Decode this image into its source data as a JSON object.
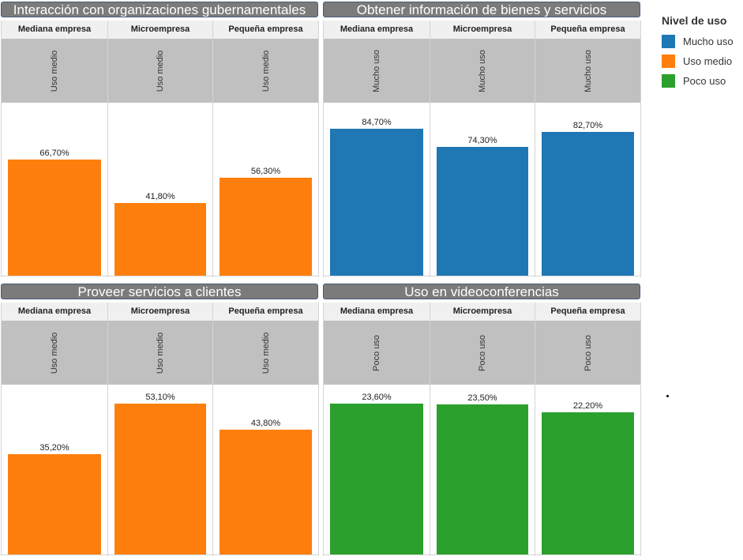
{
  "legend": {
    "title": "Nivel de uso",
    "items": [
      {
        "label": "Mucho uso",
        "color": "#1f77b4"
      },
      {
        "label": "Uso medio",
        "color": "#ff7f0e"
      },
      {
        "label": "Poco uso",
        "color": "#2ca02c"
      }
    ]
  },
  "chart_data": [
    {
      "type": "bar",
      "title": "Interacción con organizaciones gubernamentales",
      "categories": [
        "Mediana empresa",
        "Microempresa",
        "Pequeña empresa"
      ],
      "usage_level": [
        "Uso medio",
        "Uso medio",
        "Uso medio"
      ],
      "values": [
        66.7,
        41.8,
        56.3
      ],
      "labels": [
        "66,70%",
        "41,80%",
        "56,30%"
      ],
      "color": "#ff7f0e",
      "ylim": [
        0,
        100
      ]
    },
    {
      "type": "bar",
      "title": "Obtener información de bienes y servicios",
      "categories": [
        "Mediana empresa",
        "Microempresa",
        "Pequeña empresa"
      ],
      "usage_level": [
        "Mucho uso",
        "Mucho uso",
        "Mucho uso"
      ],
      "values": [
        84.7,
        74.3,
        82.7
      ],
      "labels": [
        "84,70%",
        "74,30%",
        "82,70%"
      ],
      "color": "#1f77b4",
      "ylim": [
        0,
        100
      ]
    },
    {
      "type": "bar",
      "title": "Proveer servicios a clientes",
      "categories": [
        "Mediana empresa",
        "Microempresa",
        "Pequeña empresa"
      ],
      "usage_level": [
        "Uso medio",
        "Uso medio",
        "Uso medio"
      ],
      "values": [
        35.2,
        53.1,
        43.8
      ],
      "labels": [
        "35,20%",
        "53,10%",
        "43,80%"
      ],
      "color": "#ff7f0e",
      "ylim": [
        0,
        60
      ]
    },
    {
      "type": "bar",
      "title": "Uso en videoconferencias",
      "categories": [
        "Mediana empresa",
        "Microempresa",
        "Pequeña empresa"
      ],
      "usage_level": [
        "Poco uso",
        "Poco uso",
        "Poco uso"
      ],
      "values": [
        23.6,
        23.5,
        22.2
      ],
      "labels": [
        "23,60%",
        "23,50%",
        "22,20%"
      ],
      "color": "#2ca02c",
      "ylim": [
        0,
        26.7
      ]
    }
  ]
}
